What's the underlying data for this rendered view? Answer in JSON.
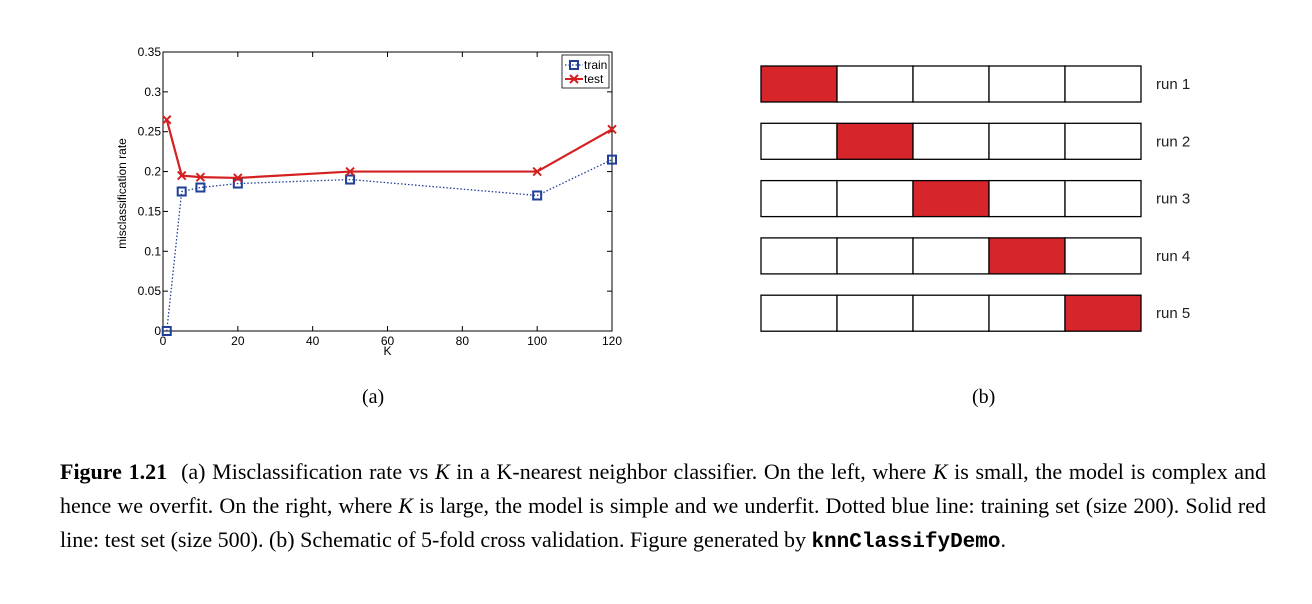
{
  "chart_data": [
    {
      "type": "line",
      "x": [
        1,
        5,
        10,
        20,
        50,
        100,
        120
      ],
      "series": [
        {
          "name": "train",
          "values": [
            0.0,
            0.175,
            0.18,
            0.185,
            0.19,
            0.17,
            0.215
          ],
          "color": "#1f3f99",
          "style": "dotted",
          "marker": "square"
        },
        {
          "name": "test",
          "values": [
            0.265,
            0.195,
            0.193,
            0.192,
            0.2,
            0.2,
            0.253
          ],
          "color": "#d42020",
          "style": "solid",
          "marker": "x"
        }
      ],
      "xlabel": "K",
      "ylabel": "misclassification rate",
      "xlim": [
        0,
        120
      ],
      "ylim": [
        0,
        0.35
      ],
      "xticks": [
        "0",
        "20",
        "40",
        "60",
        "80",
        "100",
        "120"
      ],
      "yticks": [
        "0",
        "0.05",
        "0.1",
        "0.15",
        "0.2",
        "0.25",
        "0.3",
        "0.35"
      ],
      "legend": "top-right",
      "grid": false
    },
    {
      "type": "table",
      "folds": 5,
      "runs": [
        {
          "label": "run 1",
          "held_out": 1
        },
        {
          "label": "run 2",
          "held_out": 2
        },
        {
          "label": "run 3",
          "held_out": 3
        },
        {
          "label": "run 4",
          "held_out": 4
        },
        {
          "label": "run 5",
          "held_out": 5
        }
      ],
      "highlight_color": "#d7262b"
    }
  ],
  "panels": {
    "a_label": "(a)",
    "b_label": "(b)"
  },
  "caption": {
    "figure_number": "Figure 1.21",
    "s1": "(a) Misclassification rate vs ",
    "k": "K",
    "s2": " in a K-nearest neighbor classifier. On the left, where ",
    "s3": " is small, the model is complex and hence we overfit. On the right, where ",
    "s4": " is large, the model is simple and we underfit. Dotted blue line: training set (size 200). Solid red line: test set (size 500). (b) Schematic of 5-fold cross validation. Figure generated by ",
    "code": "knnClassifyDemo",
    "end": "."
  }
}
